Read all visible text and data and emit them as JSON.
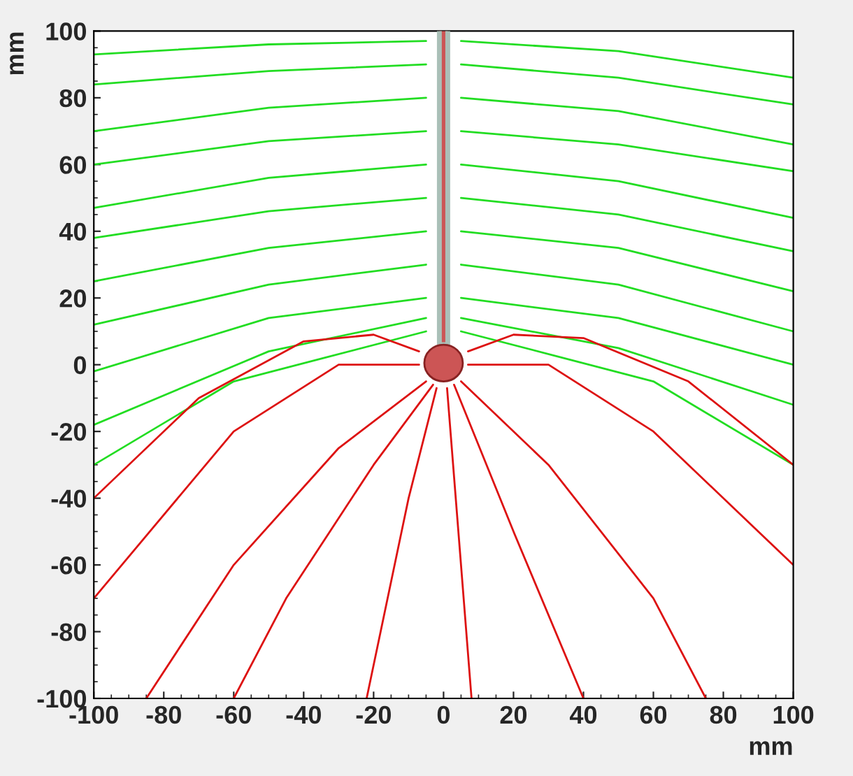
{
  "chart_data": {
    "type": "line",
    "xlabel": "mm",
    "ylabel": "mm",
    "xlim": [
      -100,
      100
    ],
    "ylim": [
      -100,
      100
    ],
    "xticks": [
      -100,
      -80,
      -60,
      -40,
      -20,
      0,
      20,
      40,
      60,
      80,
      100
    ],
    "yticks": [
      -100,
      -80,
      -60,
      -40,
      -20,
      0,
      20,
      40,
      60,
      80,
      100
    ],
    "grid": false,
    "legend": false,
    "series": [
      {
        "color": "#22dd22",
        "x": [
          -100,
          -50,
          -5
        ],
        "values": [
          93,
          96,
          97
        ]
      },
      {
        "color": "#22dd22",
        "x": [
          5,
          50,
          100
        ],
        "values": [
          97,
          94,
          86
        ]
      },
      {
        "color": "#22dd22",
        "x": [
          -100,
          -50,
          -5
        ],
        "values": [
          84,
          88,
          90
        ]
      },
      {
        "color": "#22dd22",
        "x": [
          5,
          50,
          100
        ],
        "values": [
          90,
          86,
          78
        ]
      },
      {
        "color": "#22dd22",
        "x": [
          -100,
          -50,
          -5
        ],
        "values": [
          70,
          77,
          80
        ]
      },
      {
        "color": "#22dd22",
        "x": [
          5,
          50,
          100
        ],
        "values": [
          80,
          76,
          66
        ]
      },
      {
        "color": "#22dd22",
        "x": [
          -100,
          -50,
          -5
        ],
        "values": [
          60,
          67,
          70
        ]
      },
      {
        "color": "#22dd22",
        "x": [
          5,
          50,
          100
        ],
        "values": [
          70,
          66,
          58
        ]
      },
      {
        "color": "#22dd22",
        "x": [
          -100,
          -50,
          -5
        ],
        "values": [
          47,
          56,
          60
        ]
      },
      {
        "color": "#22dd22",
        "x": [
          5,
          50,
          100
        ],
        "values": [
          60,
          55,
          44
        ]
      },
      {
        "color": "#22dd22",
        "x": [
          -100,
          -50,
          -5
        ],
        "values": [
          38,
          46,
          50
        ]
      },
      {
        "color": "#22dd22",
        "x": [
          5,
          50,
          100
        ],
        "values": [
          50,
          45,
          34
        ]
      },
      {
        "color": "#22dd22",
        "x": [
          -100,
          -50,
          -5
        ],
        "values": [
          25,
          35,
          40
        ]
      },
      {
        "color": "#22dd22",
        "x": [
          5,
          50,
          100
        ],
        "values": [
          40,
          35,
          22
        ]
      },
      {
        "color": "#22dd22",
        "x": [
          -100,
          -50,
          -5
        ],
        "values": [
          12,
          24,
          30
        ]
      },
      {
        "color": "#22dd22",
        "x": [
          5,
          50,
          100
        ],
        "values": [
          30,
          24,
          10
        ]
      },
      {
        "color": "#22dd22",
        "x": [
          -100,
          -50,
          -5
        ],
        "values": [
          -2,
          14,
          20
        ]
      },
      {
        "color": "#22dd22",
        "x": [
          5,
          50,
          100
        ],
        "values": [
          20,
          14,
          0
        ]
      },
      {
        "color": "#22dd22",
        "x": [
          -100,
          -50,
          -5
        ],
        "values": [
          -18,
          4,
          14
        ]
      },
      {
        "color": "#22dd22",
        "x": [
          5,
          50,
          100
        ],
        "values": [
          14,
          5,
          -12
        ]
      },
      {
        "color": "#22dd22",
        "x": [
          -100,
          -60,
          -5
        ],
        "values": [
          -30,
          -5,
          10
        ]
      },
      {
        "color": "#22dd22",
        "x": [
          5,
          60,
          100
        ],
        "values": [
          10,
          -5,
          -30
        ]
      },
      {
        "color": "#dd1111",
        "x": [
          -7,
          -20,
          -40,
          -70,
          -100
        ],
        "values": [
          4,
          9,
          7,
          -10,
          -40
        ]
      },
      {
        "color": "#dd1111",
        "x": [
          -7,
          -30,
          -60,
          -100
        ],
        "values": [
          0,
          0,
          -20,
          -70
        ]
      },
      {
        "color": "#dd1111",
        "x": [
          -5,
          -30,
          -60,
          -85
        ],
        "values": [
          -5,
          -25,
          -60,
          -100
        ]
      },
      {
        "color": "#dd1111",
        "x": [
          -3,
          -20,
          -45,
          -60
        ],
        "values": [
          -6,
          -30,
          -70,
          -100
        ]
      },
      {
        "color": "#dd1111",
        "x": [
          -2,
          -10,
          -22
        ],
        "values": [
          -7,
          -40,
          -100
        ]
      },
      {
        "color": "#dd1111",
        "x": [
          1,
          8
        ],
        "values": [
          -7,
          -100
        ]
      },
      {
        "color": "#dd1111",
        "x": [
          3,
          20,
          40
        ],
        "values": [
          -6,
          -50,
          -100
        ]
      },
      {
        "color": "#dd1111",
        "x": [
          5,
          30,
          60,
          75
        ],
        "values": [
          -5,
          -30,
          -70,
          -100
        ]
      },
      {
        "color": "#dd1111",
        "x": [
          7,
          30,
          60,
          100
        ],
        "values": [
          0,
          0,
          -20,
          -60
        ]
      },
      {
        "color": "#dd1111",
        "x": [
          7,
          20,
          40,
          70,
          100
        ],
        "values": [
          4,
          9,
          8,
          -5,
          -30
        ]
      }
    ]
  }
}
